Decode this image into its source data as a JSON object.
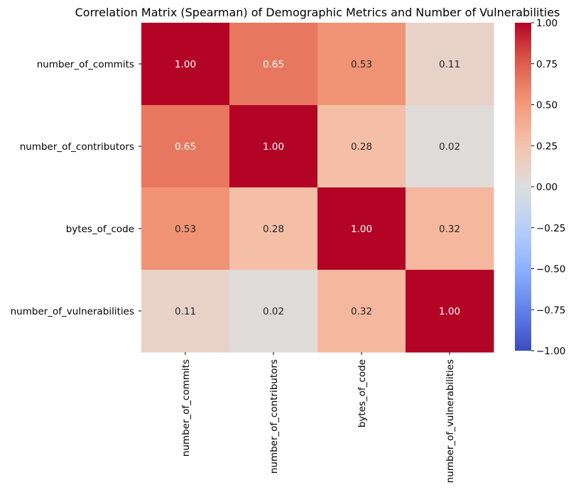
{
  "chart_data": {
    "type": "heatmap",
    "title": "Correlation Matrix (Spearman) of Demographic Metrics and Number of Vulnerabilities",
    "rows": [
      "number_of_commits",
      "number_of_contributors",
      "bytes_of_code",
      "number_of_vulnerabilities"
    ],
    "columns": [
      "number_of_commits",
      "number_of_contributors",
      "bytes_of_code",
      "number_of_vulnerabilities"
    ],
    "values": [
      [
        1.0,
        0.65,
        0.53,
        0.11
      ],
      [
        0.65,
        1.0,
        0.28,
        0.02
      ],
      [
        0.53,
        0.28,
        1.0,
        0.32
      ],
      [
        0.11,
        0.02,
        0.32,
        1.0
      ]
    ],
    "value_format": "2f",
    "colormap": "coolwarm",
    "vmin": -1.0,
    "vmax": 1.0,
    "colorbar_ticks": [
      1.0,
      0.75,
      0.5,
      0.25,
      0.0,
      -0.25,
      -0.5,
      -0.75,
      -1.0
    ],
    "colorbar_tick_labels": [
      "1.00",
      "0.75",
      "0.50",
      "0.25",
      "0.00",
      "−0.25",
      "−0.50",
      "−0.75",
      "−1.00"
    ],
    "colorbar_placement": "right",
    "grid": false
  }
}
